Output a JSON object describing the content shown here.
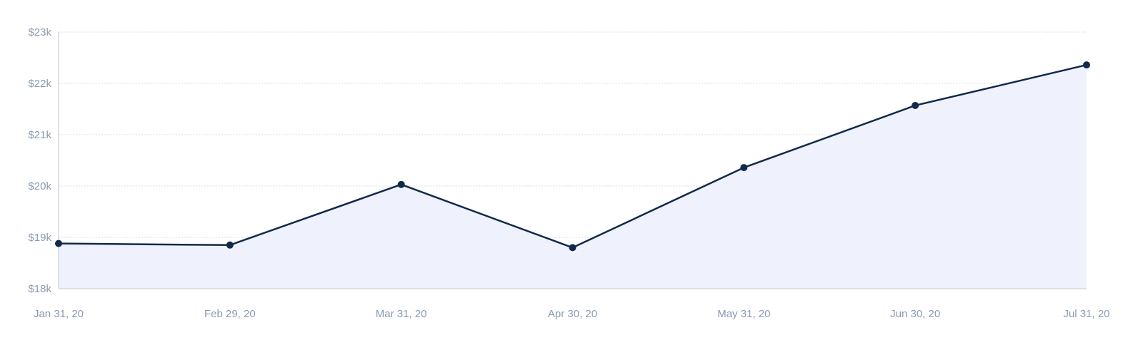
{
  "chart_data": {
    "type": "area",
    "title": "",
    "xlabel": "",
    "ylabel": "",
    "categories": [
      "Jan 31, 20",
      "Feb 29, 20",
      "Mar 31, 20",
      "Apr 30, 20",
      "May 31, 20",
      "Jun 30, 20",
      "Jul 31, 20"
    ],
    "series": [
      {
        "values": [
          18880,
          18850,
          20030,
          18800,
          20360,
          21570,
          22360
        ]
      }
    ],
    "ylim": [
      18000,
      23000
    ],
    "yticks": [
      18000,
      19000,
      20000,
      21000,
      22000,
      23000
    ],
    "ytick_labels": [
      "$18k",
      "$19k",
      "$20k",
      "$21k",
      "$22k",
      "$23k"
    ],
    "grid": true,
    "legend": "none",
    "colors": {
      "line": "#12294a",
      "fill": "#eff2fc",
      "grid": "#d9dee5",
      "axis": "#d4d9e0",
      "tick_text": "#8a9bb0"
    }
  }
}
